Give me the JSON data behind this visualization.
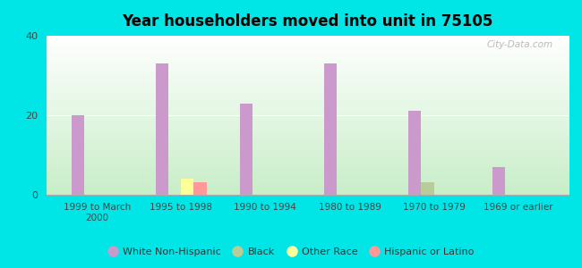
{
  "title": "Year householders moved into unit in 75105",
  "background_color": "#00e5e5",
  "categories": [
    "1999 to March\n2000",
    "1995 to 1998",
    "1990 to 1994",
    "1980 to 1989",
    "1970 to 1979",
    "1969 or earlier"
  ],
  "series": {
    "White Non-Hispanic": {
      "color": "#cc99cc",
      "values": [
        20,
        33,
        23,
        33,
        21,
        7
      ]
    },
    "Black": {
      "color": "#b8cc99",
      "values": [
        0,
        0,
        0,
        0,
        3,
        0
      ]
    },
    "Other Race": {
      "color": "#ffff99",
      "values": [
        0,
        4,
        0,
        0,
        0,
        0
      ]
    },
    "Hispanic or Latino": {
      "color": "#ff9999",
      "values": [
        0,
        3,
        0,
        0,
        0,
        0
      ]
    }
  },
  "ylim": [
    0,
    40
  ],
  "yticks": [
    0,
    20,
    40
  ],
  "bar_width": 0.15,
  "legend_entries": [
    "White Non-Hispanic",
    "Black",
    "Other Race",
    "Hispanic or Latino"
  ],
  "legend_colors": [
    "#cc99cc",
    "#b8cc99",
    "#ffff99",
    "#ff9999"
  ],
  "watermark": "City-Data.com",
  "gradient_top": "#ffffff",
  "gradient_bottom": "#c8eec8"
}
